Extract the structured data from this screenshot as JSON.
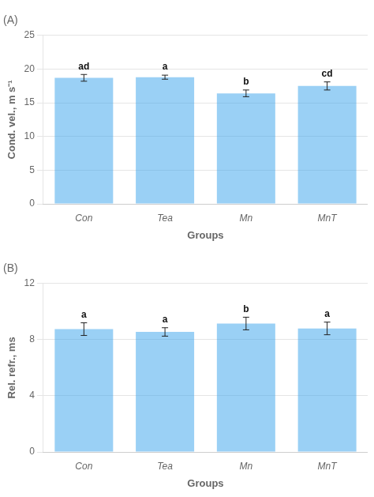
{
  "chart_data": [
    {
      "type": "bar",
      "title": "(A)",
      "xlabel": "Groups",
      "ylabel": "Cond. vel., m s⁻¹",
      "categories": [
        "Con",
        "Tea",
        "Mn",
        "MnT"
      ],
      "values": [
        18.7,
        18.8,
        16.4,
        17.5
      ],
      "errors": [
        0.5,
        0.3,
        0.5,
        0.6
      ],
      "annotations": [
        "ad",
        "a",
        "b",
        "cd"
      ],
      "ylim": [
        0,
        25
      ],
      "yticks": [
        0,
        5,
        10,
        15,
        20,
        25
      ],
      "grid": true
    },
    {
      "type": "bar",
      "title": "(B)",
      "xlabel": "Groups",
      "ylabel": "Rel. refr., ms",
      "categories": [
        "Con",
        "Tea",
        "Mn",
        "MnT"
      ],
      "values": [
        8.75,
        8.55,
        9.15,
        8.8
      ],
      "errors": [
        0.45,
        0.3,
        0.45,
        0.45
      ],
      "annotations": [
        "a",
        "a",
        "b",
        "a"
      ],
      "ylim": [
        0,
        12
      ],
      "yticks": [
        0,
        4,
        8,
        12
      ],
      "grid": true
    }
  ]
}
